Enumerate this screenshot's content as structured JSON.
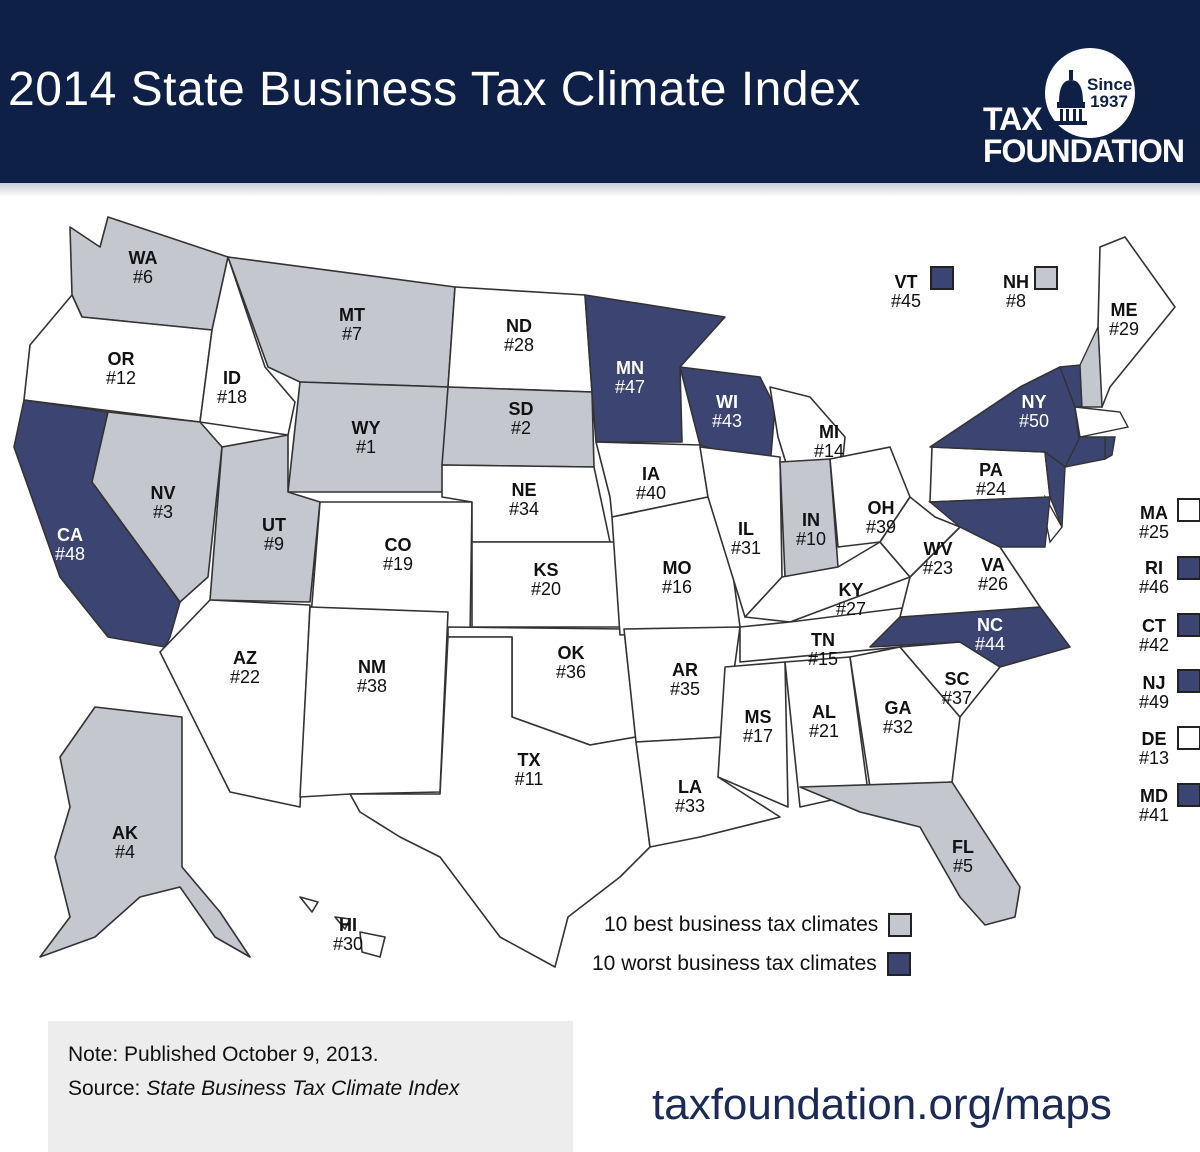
{
  "title": "2014 State Business Tax Climate Index",
  "logo": {
    "since": "Since",
    "year": "1937",
    "line1": "TAX",
    "line2": "FOUNDATION"
  },
  "colors": {
    "header": "#0f2046",
    "best": "#c4c7ce",
    "worst": "#3c4471",
    "neutral": "#ffffff"
  },
  "legend": {
    "best": "10 best business tax climates",
    "worst": "10 worst business tax climates"
  },
  "states": [
    {
      "abbr": "WA",
      "rank": "#6",
      "cat": "best"
    },
    {
      "abbr": "OR",
      "rank": "#12",
      "cat": "none"
    },
    {
      "abbr": "CA",
      "rank": "#48",
      "cat": "worst"
    },
    {
      "abbr": "ID",
      "rank": "#18",
      "cat": "none"
    },
    {
      "abbr": "NV",
      "rank": "#3",
      "cat": "best"
    },
    {
      "abbr": "MT",
      "rank": "#7",
      "cat": "best"
    },
    {
      "abbr": "WY",
      "rank": "#1",
      "cat": "best"
    },
    {
      "abbr": "UT",
      "rank": "#9",
      "cat": "best"
    },
    {
      "abbr": "CO",
      "rank": "#19",
      "cat": "none"
    },
    {
      "abbr": "AZ",
      "rank": "#22",
      "cat": "none"
    },
    {
      "abbr": "NM",
      "rank": "#38",
      "cat": "none"
    },
    {
      "abbr": "ND",
      "rank": "#28",
      "cat": "none"
    },
    {
      "abbr": "SD",
      "rank": "#2",
      "cat": "best"
    },
    {
      "abbr": "NE",
      "rank": "#34",
      "cat": "none"
    },
    {
      "abbr": "KS",
      "rank": "#20",
      "cat": "none"
    },
    {
      "abbr": "OK",
      "rank": "#36",
      "cat": "none"
    },
    {
      "abbr": "TX",
      "rank": "#11",
      "cat": "none"
    },
    {
      "abbr": "MN",
      "rank": "#47",
      "cat": "worst"
    },
    {
      "abbr": "IA",
      "rank": "#40",
      "cat": "none"
    },
    {
      "abbr": "MO",
      "rank": "#16",
      "cat": "none"
    },
    {
      "abbr": "AR",
      "rank": "#35",
      "cat": "none"
    },
    {
      "abbr": "LA",
      "rank": "#33",
      "cat": "none"
    },
    {
      "abbr": "WI",
      "rank": "#43",
      "cat": "worst"
    },
    {
      "abbr": "IL",
      "rank": "#31",
      "cat": "none"
    },
    {
      "abbr": "MI",
      "rank": "#14",
      "cat": "none"
    },
    {
      "abbr": "IN",
      "rank": "#10",
      "cat": "best"
    },
    {
      "abbr": "OH",
      "rank": "#39",
      "cat": "none"
    },
    {
      "abbr": "KY",
      "rank": "#27",
      "cat": "none"
    },
    {
      "abbr": "TN",
      "rank": "#15",
      "cat": "none"
    },
    {
      "abbr": "MS",
      "rank": "#17",
      "cat": "none"
    },
    {
      "abbr": "AL",
      "rank": "#21",
      "cat": "none"
    },
    {
      "abbr": "GA",
      "rank": "#32",
      "cat": "none"
    },
    {
      "abbr": "FL",
      "rank": "#5",
      "cat": "best"
    },
    {
      "abbr": "SC",
      "rank": "#37",
      "cat": "none"
    },
    {
      "abbr": "NC",
      "rank": "#44",
      "cat": "worst"
    },
    {
      "abbr": "VA",
      "rank": "#26",
      "cat": "none"
    },
    {
      "abbr": "WV",
      "rank": "#23",
      "cat": "none"
    },
    {
      "abbr": "PA",
      "rank": "#24",
      "cat": "none"
    },
    {
      "abbr": "NY",
      "rank": "#50",
      "cat": "worst"
    },
    {
      "abbr": "ME",
      "rank": "#29",
      "cat": "none"
    },
    {
      "abbr": "AK",
      "rank": "#4",
      "cat": "best"
    },
    {
      "abbr": "HI",
      "rank": "#30",
      "cat": "none"
    }
  ],
  "callouts": [
    {
      "abbr": "VT",
      "rank": "#45",
      "cat": "worst"
    },
    {
      "abbr": "NH",
      "rank": "#8",
      "cat": "best"
    },
    {
      "abbr": "MA",
      "rank": "#25",
      "cat": "none"
    },
    {
      "abbr": "RI",
      "rank": "#46",
      "cat": "worst"
    },
    {
      "abbr": "CT",
      "rank": "#42",
      "cat": "worst"
    },
    {
      "abbr": "NJ",
      "rank": "#49",
      "cat": "worst"
    },
    {
      "abbr": "DE",
      "rank": "#13",
      "cat": "none"
    },
    {
      "abbr": "MD",
      "rank": "#41",
      "cat": "worst"
    }
  ],
  "note": {
    "published": "Note: Published October 9, 2013.",
    "source_label": "Source: ",
    "source_title": "State Business Tax Climate Index"
  },
  "url": "taxfoundation.org/maps"
}
